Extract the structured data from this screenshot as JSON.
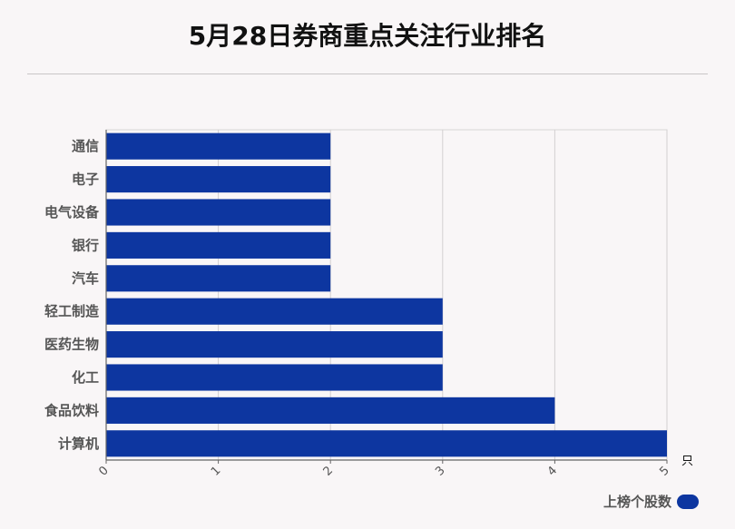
{
  "title": "5月28日券商重点关注行业排名",
  "chart_data": {
    "type": "bar",
    "orientation": "horizontal",
    "title": "5月28日券商重点关注行业排名",
    "categories": [
      "通信",
      "电子",
      "电气设备",
      "银行",
      "汽车",
      "轻工制造",
      "医药生物",
      "化工",
      "食品饮料",
      "计算机"
    ],
    "series": [
      {
        "name": "上榜个股数",
        "values": [
          2,
          2,
          2,
          2,
          2,
          3,
          3,
          3,
          4,
          5
        ]
      }
    ],
    "xlim": [
      0,
      5
    ],
    "x_ticks": [
      "0",
      "1",
      "2",
      "3",
      "4",
      "5"
    ],
    "x_unit": "只",
    "grid": true,
    "legend_position": "bottom-right",
    "bar_color": "#0d36a0"
  }
}
